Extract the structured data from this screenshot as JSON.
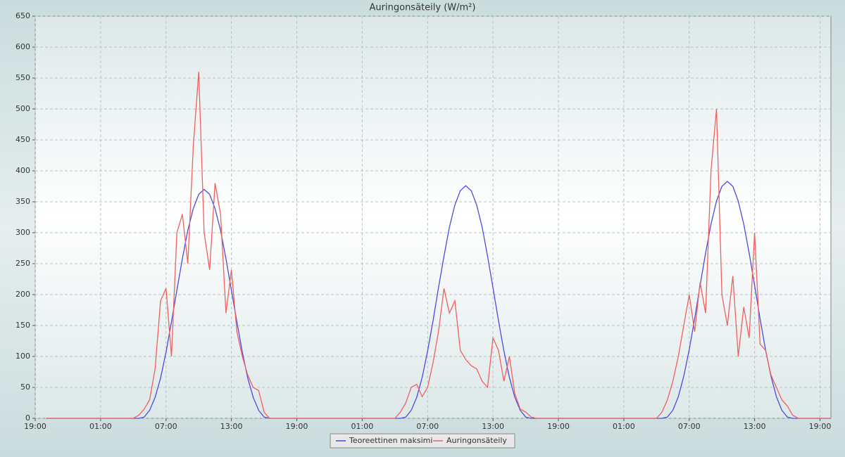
{
  "chart_data": {
    "type": "line",
    "title": "Auringonsäteily (W/m²)",
    "x": [
      1,
      9,
      9.5,
      10,
      10.5,
      11,
      11.5,
      12,
      12.5,
      13,
      13.5,
      14,
      14.5,
      15,
      15.5,
      16,
      16.5,
      17,
      17.5,
      18,
      18.5,
      19,
      19.5,
      20,
      20.5,
      21,
      21.5,
      22,
      33,
      33.5,
      34,
      34.5,
      35,
      35.5,
      36,
      36.5,
      37,
      37.5,
      38,
      38.5,
      39,
      39.5,
      40,
      40.5,
      41,
      41.5,
      42,
      42.5,
      43,
      43.5,
      44,
      44.5,
      45,
      45.5,
      46,
      57,
      57.5,
      58,
      58.5,
      59,
      59.5,
      60,
      60.5,
      61,
      61.5,
      62,
      62.5,
      63,
      63.5,
      64,
      64.5,
      65,
      65.5,
      66,
      66.5,
      67,
      67.5,
      68,
      68.5,
      69,
      69.5,
      70,
      73
    ],
    "series": [
      {
        "name": "Teoreettinen maksimi",
        "color": "#4b4bdc",
        "values": [
          0,
          0,
          0,
          2,
          13,
          34,
          65,
          107,
          156,
          207,
          258,
          304,
          339,
          362,
          370,
          362,
          339,
          304,
          258,
          207,
          156,
          107,
          65,
          34,
          13,
          2,
          0,
          0,
          0,
          0,
          2,
          13,
          34,
          66,
          109,
          158,
          211,
          262,
          309,
          345,
          368,
          376,
          368,
          345,
          309,
          262,
          211,
          158,
          109,
          66,
          34,
          13,
          2,
          0,
          0,
          0,
          0,
          2,
          13,
          35,
          68,
          111,
          161,
          215,
          267,
          314,
          351,
          375,
          383,
          375,
          351,
          314,
          267,
          215,
          161,
          111,
          68,
          35,
          13,
          2,
          0,
          0,
          0
        ]
      },
      {
        "name": "Auringonsäteily",
        "color": "#f06060",
        "values": [
          0,
          0,
          5,
          15,
          30,
          80,
          190,
          210,
          100,
          300,
          330,
          250,
          440,
          560,
          300,
          240,
          380,
          330,
          170,
          240,
          140,
          100,
          70,
          50,
          45,
          10,
          0,
          0,
          0,
          10,
          25,
          50,
          55,
          35,
          50,
          90,
          140,
          210,
          170,
          190,
          110,
          95,
          85,
          80,
          60,
          50,
          130,
          110,
          60,
          100,
          40,
          15,
          10,
          2,
          0,
          0,
          10,
          30,
          60,
          100,
          150,
          200,
          140,
          220,
          170,
          400,
          500,
          200,
          150,
          230,
          100,
          180,
          130,
          300,
          120,
          110,
          70,
          50,
          30,
          20,
          5,
          0,
          0
        ]
      }
    ],
    "xlim": [
      0,
      73
    ],
    "xticks": [
      {
        "value": 0,
        "label": "19:00"
      },
      {
        "value": 6,
        "label": "01:00"
      },
      {
        "value": 12,
        "label": "07:00"
      },
      {
        "value": 18,
        "label": "13:00"
      },
      {
        "value": 24,
        "label": "19:00"
      },
      {
        "value": 30,
        "label": "01:00"
      },
      {
        "value": 36,
        "label": "07:00"
      },
      {
        "value": 42,
        "label": "13:00"
      },
      {
        "value": 48,
        "label": "19:00"
      },
      {
        "value": 54,
        "label": "01:00"
      },
      {
        "value": 60,
        "label": "07:00"
      },
      {
        "value": 66,
        "label": "13:00"
      },
      {
        "value": 72,
        "label": "19:00"
      }
    ],
    "ylim": [
      0,
      650
    ],
    "yticks": [
      0,
      50,
      100,
      150,
      200,
      250,
      300,
      350,
      400,
      450,
      500,
      550,
      600,
      650
    ],
    "grid": true,
    "legend": "bottom"
  }
}
